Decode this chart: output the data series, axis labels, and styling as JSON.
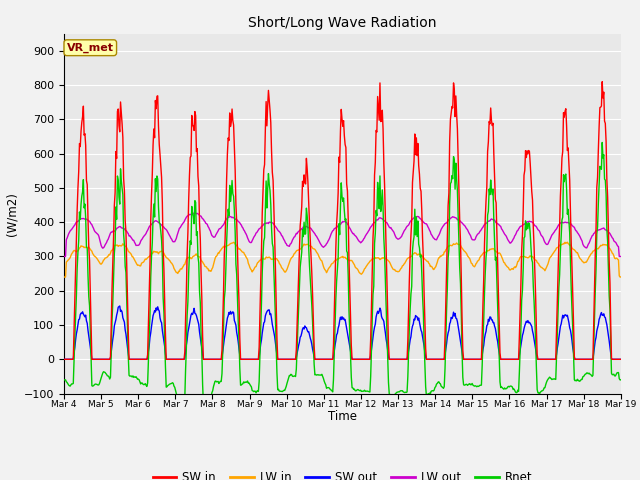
{
  "title": "Short/Long Wave Radiation",
  "xlabel": "Time",
  "ylabel": "(W/m2)",
  "ylim": [
    -100,
    950
  ],
  "yticks": [
    -100,
    0,
    100,
    200,
    300,
    400,
    500,
    600,
    700,
    800,
    900
  ],
  "date_labels": [
    "Mar 4",
    "Mar 5",
    "Mar 6",
    "Mar 7",
    "Mar 8",
    "Mar 9",
    "Mar 10",
    "Mar 11",
    "Mar 12",
    "Mar 13",
    "Mar 14",
    "Mar 15",
    "Mar 16",
    "Mar 17",
    "Mar 18",
    "Mar 19"
  ],
  "n_days": 15,
  "n_points_per_day": 48,
  "annotation_text": "VR_met",
  "colors": {
    "SW_in": "#ff0000",
    "LW_in": "#ffa500",
    "SW_out": "#0000ff",
    "LW_out": "#cc00cc",
    "Rnet": "#00cc00"
  },
  "legend_labels": [
    "SW in",
    "LW in",
    "SW out",
    "LW out",
    "Rnet"
  ],
  "plot_bg": "#e8e8e8",
  "fig_bg": "#f2f2f2",
  "grid_color": "#ffffff",
  "figsize": [
    6.4,
    4.8
  ],
  "dpi": 100,
  "sw_peaks": [
    770,
    780,
    790,
    780,
    770,
    800,
    600,
    750,
    820,
    700,
    830,
    750,
    700,
    760,
    860
  ],
  "sw_out_peaks": [
    150,
    160,
    160,
    150,
    150,
    150,
    100,
    130,
    150,
    130,
    140,
    130,
    120,
    140,
    145
  ]
}
